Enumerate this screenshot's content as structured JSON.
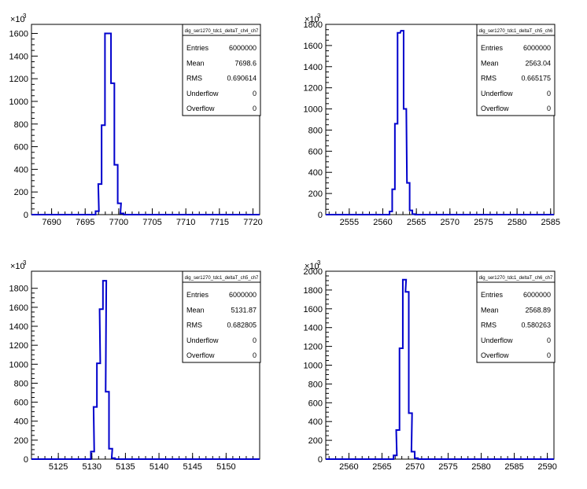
{
  "colors": {
    "histogram": "#0000cc",
    "axis": "#000000",
    "background": "#ffffff"
  },
  "chart_data": [
    {
      "type": "histogram",
      "title": "dig_ser1270_tdc1_deltaT_ch4_ch7",
      "xlim": [
        7687,
        7721
      ],
      "xticks": [
        7690,
        7695,
        7700,
        7705,
        7710,
        7715,
        7720
      ],
      "ylim": [
        0,
        1680
      ],
      "yticks": [
        0,
        200,
        400,
        600,
        800,
        1000,
        1200,
        1400,
        1600
      ],
      "y_multiplier": "×10",
      "y_multiplier_exp": "3",
      "bins": [
        {
          "x": 7696.3,
          "y": 0
        },
        {
          "x": 7696.8,
          "y": 30
        },
        {
          "x": 7697.2,
          "y": 270
        },
        {
          "x": 7697.7,
          "y": 790
        },
        {
          "x": 7698.2,
          "y": 1600
        },
        {
          "x": 7698.6,
          "y": 1600
        },
        {
          "x": 7699.1,
          "y": 1160
        },
        {
          "x": 7699.6,
          "y": 440
        },
        {
          "x": 7700.1,
          "y": 100
        },
        {
          "x": 7700.5,
          "y": 10
        }
      ],
      "stats": {
        "name": "dig_ser1270_tdc1_deltaT_ch4_ch7",
        "rows": [
          {
            "label": "Entries",
            "value": "6000000"
          },
          {
            "label": "Mean",
            "value": "7698.6"
          },
          {
            "label": "RMS",
            "value": "0.690614"
          },
          {
            "label": "Underflow",
            "value": "0"
          },
          {
            "label": "Overflow",
            "value": "0"
          }
        ]
      }
    },
    {
      "type": "histogram",
      "title": "dig_ser1270_tdc1_deltaT_ch5_ch6",
      "xlim": [
        2551.5,
        2585.5
      ],
      "xticks": [
        2555,
        2560,
        2565,
        2570,
        2575,
        2580,
        2585
      ],
      "ylim": [
        0,
        1800
      ],
      "yticks": [
        0,
        200,
        400,
        600,
        800,
        1000,
        1200,
        1400,
        1600,
        1800
      ],
      "y_multiplier": "×10",
      "y_multiplier_exp": "3",
      "bins": [
        {
          "x": 2560.8,
          "y": 0
        },
        {
          "x": 2561.2,
          "y": 30
        },
        {
          "x": 2561.6,
          "y": 240
        },
        {
          "x": 2562.0,
          "y": 860
        },
        {
          "x": 2562.4,
          "y": 1720
        },
        {
          "x": 2562.9,
          "y": 1740
        },
        {
          "x": 2563.3,
          "y": 1000
        },
        {
          "x": 2563.8,
          "y": 300
        },
        {
          "x": 2564.2,
          "y": 40
        },
        {
          "x": 2564.6,
          "y": 5
        }
      ],
      "stats": {
        "name": "dig_ser1270_tdc1_deltaT_ch5_ch6",
        "rows": [
          {
            "label": "Entries",
            "value": "6000000"
          },
          {
            "label": "Mean",
            "value": "2563.04"
          },
          {
            "label": "RMS",
            "value": "0.665175"
          },
          {
            "label": "Underflow",
            "value": "0"
          },
          {
            "label": "Overflow",
            "value": "0"
          }
        ]
      }
    },
    {
      "type": "histogram",
      "title": "dig_ser1270_tdc1_deltaT_ch5_ch7",
      "xlim": [
        5121,
        5155
      ],
      "xticks": [
        5125,
        5130,
        5135,
        5140,
        5145,
        5150
      ],
      "ylim": [
        0,
        1980
      ],
      "yticks": [
        0,
        200,
        400,
        600,
        800,
        1000,
        1200,
        1400,
        1600,
        1800
      ],
      "y_multiplier": "×10",
      "y_multiplier_exp": "3",
      "bins": [
        {
          "x": 5129.6,
          "y": 0
        },
        {
          "x": 5130.1,
          "y": 80
        },
        {
          "x": 5130.5,
          "y": 550
        },
        {
          "x": 5131.0,
          "y": 1010
        },
        {
          "x": 5131.4,
          "y": 1580
        },
        {
          "x": 5131.9,
          "y": 1880
        },
        {
          "x": 5132.3,
          "y": 710
        },
        {
          "x": 5132.8,
          "y": 110
        },
        {
          "x": 5133.2,
          "y": 10
        }
      ],
      "stats": {
        "name": "dig_ser1270_tdc1_deltaT_ch5_ch7",
        "rows": [
          {
            "label": "Entries",
            "value": "6000000"
          },
          {
            "label": "Mean",
            "value": "5131.87"
          },
          {
            "label": "RMS",
            "value": "0.682805"
          },
          {
            "label": "Underflow",
            "value": "0"
          },
          {
            "label": "Overflow",
            "value": "0"
          }
        ]
      }
    },
    {
      "type": "histogram",
      "title": "dig_ser1270_tdc1_deltaT_ch6_ch7",
      "xlim": [
        2556.5,
        2591
      ],
      "xticks": [
        2560,
        2565,
        2570,
        2575,
        2580,
        2585,
        2590
      ],
      "ylim": [
        0,
        2000
      ],
      "yticks": [
        0,
        200,
        400,
        600,
        800,
        1000,
        1200,
        1400,
        1600,
        1800,
        2000
      ],
      "y_multiplier": "×10",
      "y_multiplier_exp": "3",
      "bins": [
        {
          "x": 2566.5,
          "y": 0
        },
        {
          "x": 2567.0,
          "y": 40
        },
        {
          "x": 2567.4,
          "y": 310
        },
        {
          "x": 2567.9,
          "y": 1180
        },
        {
          "x": 2568.4,
          "y": 1910
        },
        {
          "x": 2568.8,
          "y": 1780
        },
        {
          "x": 2569.3,
          "y": 490
        },
        {
          "x": 2569.7,
          "y": 80
        },
        {
          "x": 2570.2,
          "y": 10
        }
      ],
      "stats": {
        "name": "dig_ser1270_tdc1_deltaT_ch6_ch7",
        "rows": [
          {
            "label": "Entries",
            "value": "6000000"
          },
          {
            "label": "Mean",
            "value": "2568.89"
          },
          {
            "label": "RMS",
            "value": "0.580263"
          },
          {
            "label": "Underflow",
            "value": "0"
          },
          {
            "label": "Overflow",
            "value": "0"
          }
        ]
      }
    }
  ]
}
